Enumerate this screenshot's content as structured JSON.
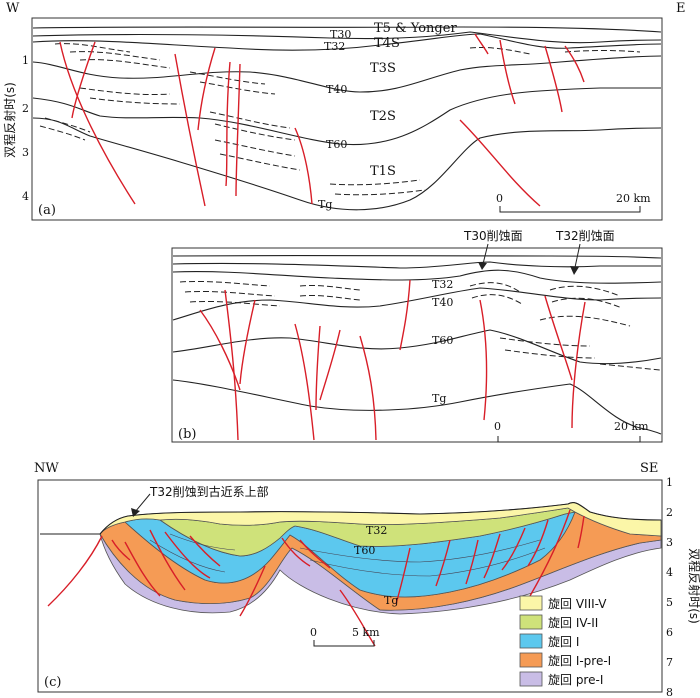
{
  "panel_a": {
    "label": "(a)",
    "compass_w": "W",
    "compass_e": "E",
    "y_axis_title": "双程反射时(s)",
    "y_ticks": [
      "1",
      "2",
      "3",
      "4"
    ],
    "horizons": [
      "T30",
      "T32",
      "T40",
      "T60",
      "Tg"
    ],
    "units": [
      "T5 & Yonger",
      "T4S",
      "T3S",
      "T2S",
      "T1S"
    ],
    "scale_start": "0",
    "scale_end": "20 km"
  },
  "panel_b": {
    "label": "(b)",
    "horizons": [
      "T32",
      "T40",
      "T60",
      "Tg"
    ],
    "annotation_1": "T30削蚀面",
    "annotation_2": "T32削蚀面",
    "scale_start": "0",
    "scale_end": "20 km"
  },
  "panel_c": {
    "label": "(c)",
    "compass_w": "NW",
    "compass_e": "SE",
    "y_axis_title": "双程反射时(s)",
    "y_ticks": [
      "1",
      "2",
      "3",
      "4",
      "5",
      "6",
      "7",
      "8"
    ],
    "horizons": [
      "T32",
      "T60",
      "Tg"
    ],
    "annotation": "T32削蚀到古近系上部",
    "scale_start": "0",
    "scale_end": "5 km",
    "legend": [
      {
        "label": "旋回 VIII-V",
        "color": "#fbf6a8"
      },
      {
        "label": "旋回 IV-II",
        "color": "#cfe27a"
      },
      {
        "label": "旋回 I",
        "color": "#5cc8ee"
      },
      {
        "label": "旋回 I-pre-I",
        "color": "#f59b55"
      },
      {
        "label": "旋回 pre-I",
        "color": "#c9bde6"
      }
    ]
  }
}
